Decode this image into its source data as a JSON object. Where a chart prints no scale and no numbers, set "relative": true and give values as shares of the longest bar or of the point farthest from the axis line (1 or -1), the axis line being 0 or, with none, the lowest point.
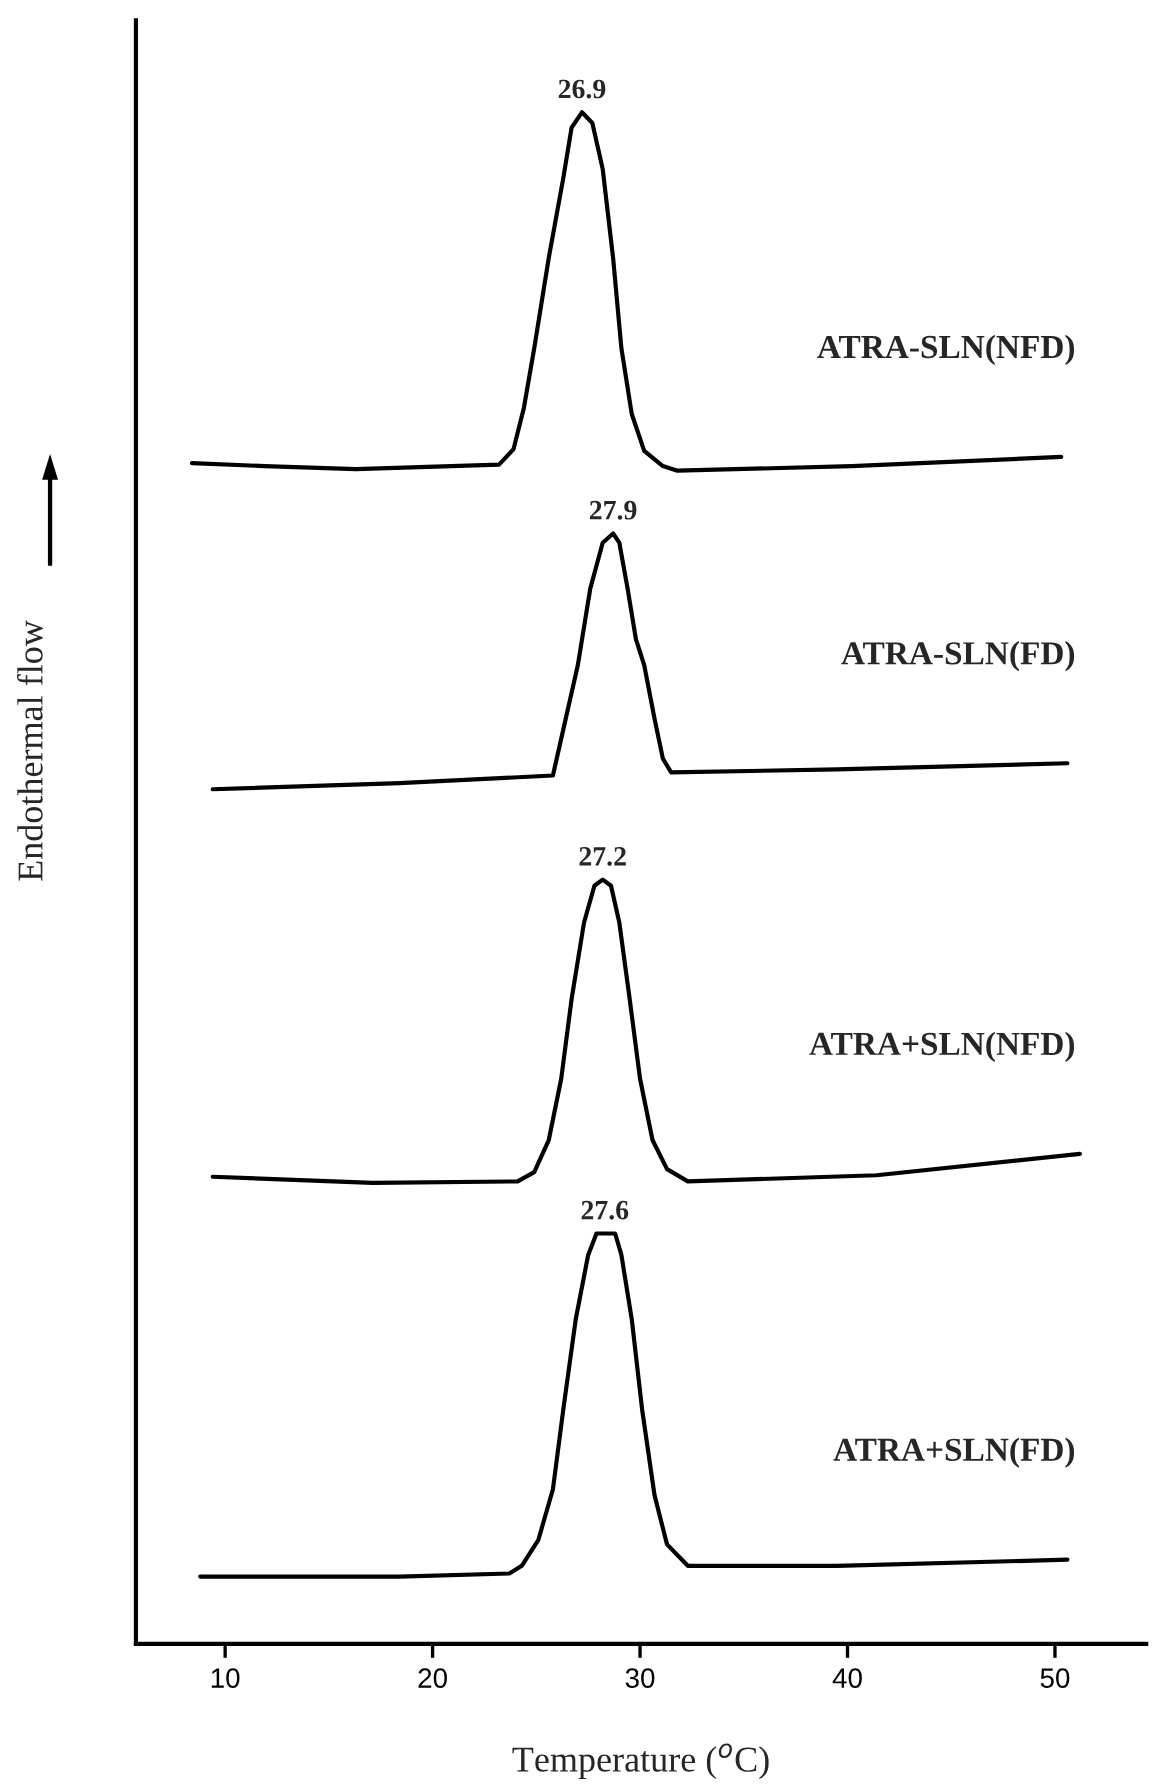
{
  "chart_data": {
    "type": "line",
    "relative": true,
    "xlabel": "Temperature ($^{o}$C)",
    "ylabel": "Endothermal flow",
    "xlim": [
      5.7,
      54.4
    ],
    "xticks": [
      10,
      20,
      30,
      40,
      50
    ],
    "grid": false,
    "marker": "none",
    "line_style": "solid",
    "series": [
      {
        "name": "ATRA-SLN(NFD)",
        "color": "#000000",
        "x": [
          8.4,
          11.9,
          16.3,
          23.2,
          23.9,
          24.4,
          24.9,
          25.6,
          26.3,
          26.7,
          27.2,
          27.7,
          28.2,
          28.7,
          29.1,
          29.6,
          30.2,
          31.1,
          31.8,
          40.2,
          50.3
        ],
        "values": [
          0.771,
          0.769,
          0.767,
          0.77,
          0.78,
          0.807,
          0.846,
          0.905,
          0.957,
          0.99,
          1.0,
          0.993,
          0.963,
          0.905,
          0.846,
          0.803,
          0.779,
          0.769,
          0.766,
          0.769,
          0.775
        ]
      },
      {
        "name": "ATRA-SLN(FD)",
        "color": "#000000",
        "x": [
          9.4,
          18.4,
          25.8,
          26.3,
          27.0,
          27.6,
          28.2,
          28.7,
          29.0,
          29.4,
          29.8,
          30.2,
          30.7,
          31.1,
          31.5,
          39.5,
          50.6
        ],
        "values": [
          0.558,
          0.562,
          0.567,
          0.597,
          0.639,
          0.689,
          0.719,
          0.725,
          0.719,
          0.689,
          0.656,
          0.639,
          0.604,
          0.578,
          0.569,
          0.571,
          0.575
        ]
      },
      {
        "name": "ATRA+SLN(NFD)",
        "color": "#000000",
        "x": [
          9.4,
          17.1,
          24.1,
          24.9,
          25.6,
          26.2,
          26.7,
          27.3,
          27.8,
          28.2,
          28.6,
          29.0,
          29.5,
          30.0,
          30.6,
          31.3,
          32.3,
          41.4,
          51.2
        ],
        "values": [
          0.305,
          0.301,
          0.302,
          0.308,
          0.329,
          0.369,
          0.421,
          0.471,
          0.495,
          0.499,
          0.495,
          0.471,
          0.421,
          0.369,
          0.329,
          0.31,
          0.302,
          0.306,
          0.32
        ]
      },
      {
        "name": "ATRA+SLN(FD)",
        "color": "#000000",
        "x": [
          8.8,
          18.4,
          23.7,
          24.3,
          25.1,
          25.8,
          26.3,
          26.9,
          27.5,
          27.9,
          28.8,
          29.1,
          29.6,
          30.1,
          30.7,
          31.3,
          32.3,
          39.5,
          50.6
        ],
        "values": [
          0.044,
          0.044,
          0.046,
          0.051,
          0.068,
          0.101,
          0.153,
          0.212,
          0.254,
          0.268,
          0.268,
          0.254,
          0.212,
          0.153,
          0.097,
          0.065,
          0.051,
          0.051,
          0.055
        ]
      }
    ],
    "annotations": [
      {
        "text": "26.9",
        "x": 27.2,
        "y": 1.0
      },
      {
        "text": "27.9",
        "x": 28.7,
        "y": 0.725
      },
      {
        "text": "27.2",
        "x": 28.2,
        "y": 0.499
      },
      {
        "text": "27.6",
        "x": 28.3,
        "y": 0.268
      }
    ]
  }
}
